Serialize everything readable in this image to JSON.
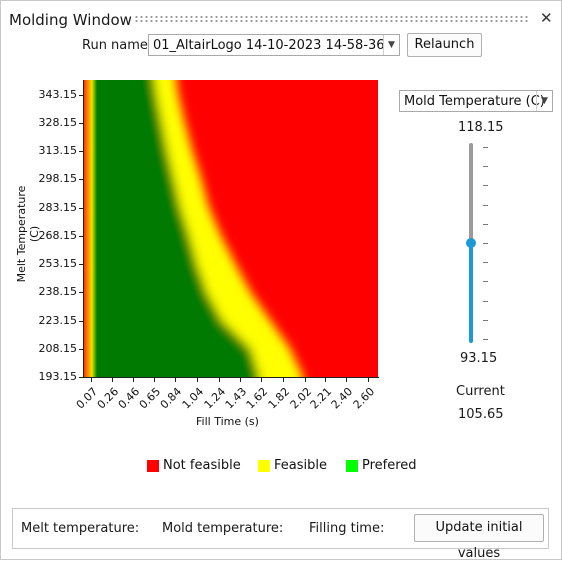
{
  "window": {
    "title": "Molding Window"
  },
  "top": {
    "run_label": "Run name",
    "run_value": "01_AltairLogo 14-10-2023 14-58-36",
    "relaunch": "Relaunch"
  },
  "right": {
    "param_value": "Mold Temperature (C)",
    "slider_max": "118.15",
    "slider_min": "93.15",
    "slider_level_fraction": 0.5,
    "current_label": "Current",
    "current_value": "105.65"
  },
  "legend": {
    "not_feasible": "Not feasible",
    "feasible": "Feasible",
    "preferred": "Prefered"
  },
  "bottom": {
    "melt": "Melt temperature:",
    "mold": "Mold temperature:",
    "filling": "Filling time:",
    "update": "Update initial values"
  },
  "colors": {
    "not_feasible": "#ff0000",
    "feasible": "#ffff00",
    "preferred": "#00ff00",
    "plot_green": "#007a00",
    "slider_active": "#1a9ad6",
    "slider_inactive": "#9a9a9a"
  },
  "chart_data": {
    "type": "heatmap",
    "xlabel": "Fill Time (s)",
    "ylabel": "Melt Temperature (C)",
    "x_ticks": [
      "0.07",
      "0.26",
      "0.46",
      "0.65",
      "0.84",
      "1.04",
      "1.24",
      "1.43",
      "1.62",
      "1.82",
      "2.02",
      "2.21",
      "2.40",
      "2.60"
    ],
    "y_ticks": [
      "343.15",
      "328.15",
      "313.15",
      "298.15",
      "283.15",
      "268.15",
      "253.15",
      "238.15",
      "223.15",
      "208.15",
      "193.15"
    ],
    "xlim": [
      0.0,
      2.68
    ],
    "ylim": [
      193.15,
      351.0
    ],
    "regions": [
      {
        "name": "Not feasible",
        "description_color": "red"
      },
      {
        "name": "Feasible",
        "description_color": "yellow"
      },
      {
        "name": "Prefered",
        "description_color": "green"
      }
    ],
    "feasible_band": [
      {
        "melt": 351.0,
        "green_end": 0.64,
        "yellow_end": 0.84
      },
      {
        "melt": 343.15,
        "green_end": 0.66,
        "yellow_end": 0.86
      },
      {
        "melt": 328.15,
        "green_end": 0.71,
        "yellow_end": 0.92
      },
      {
        "melt": 313.15,
        "green_end": 0.76,
        "yellow_end": 0.99
      },
      {
        "melt": 298.15,
        "green_end": 0.82,
        "yellow_end": 1.07
      },
      {
        "melt": 283.15,
        "green_end": 0.88,
        "yellow_end": 1.14
      },
      {
        "melt": 268.15,
        "green_end": 0.96,
        "yellow_end": 1.25
      },
      {
        "melt": 253.15,
        "green_end": 1.03,
        "yellow_end": 1.38
      },
      {
        "melt": 238.15,
        "green_end": 1.12,
        "yellow_end": 1.52
      },
      {
        "melt": 223.15,
        "green_end": 1.26,
        "yellow_end": 1.7
      },
      {
        "melt": 208.15,
        "green_end": 1.52,
        "yellow_end": 1.88
      },
      {
        "melt": 193.15,
        "green_end": 1.6,
        "yellow_end": 2.0
      }
    ],
    "left_edge_infeasible_end": 0.12
  }
}
